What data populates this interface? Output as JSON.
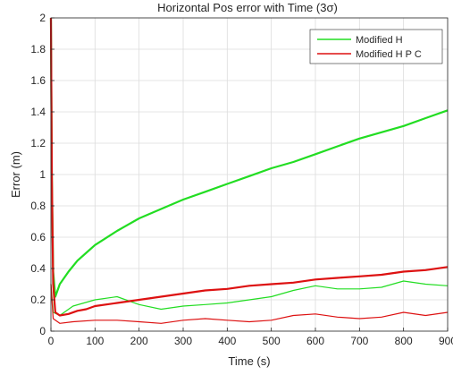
{
  "chart_data": {
    "type": "line",
    "title": "Horizontal Pos error with Time (3σ)",
    "xlabel": "Time (s)",
    "ylabel": "Error (m)",
    "xlim": [
      0,
      900
    ],
    "ylim": [
      0,
      2
    ],
    "grid": true,
    "legend_position": "top-right",
    "x_ticks": [
      "0",
      "100",
      "200",
      "300",
      "400",
      "500",
      "600",
      "700",
      "800",
      "900"
    ],
    "y_ticks": [
      "0",
      "0.2",
      "0.4",
      "0.6",
      "0.8",
      "1",
      "1.2",
      "1.4",
      "1.6",
      "1.8",
      "2"
    ],
    "series": [
      {
        "name": "Modified H",
        "color": "#22dd22",
        "role": "3-sigma bound",
        "x": [
          0,
          2,
          5,
          10,
          20,
          40,
          60,
          80,
          100,
          150,
          200,
          250,
          300,
          350,
          400,
          450,
          500,
          550,
          600,
          650,
          700,
          750,
          800,
          850,
          900
        ],
        "y": [
          2.0,
          1.0,
          0.38,
          0.22,
          0.3,
          0.38,
          0.45,
          0.5,
          0.55,
          0.64,
          0.72,
          0.78,
          0.84,
          0.89,
          0.94,
          0.99,
          1.04,
          1.08,
          1.13,
          1.18,
          1.23,
          1.27,
          1.31,
          1.36,
          1.41
        ]
      },
      {
        "name": "Modified H",
        "color": "#22dd22",
        "role": "error",
        "x": [
          0,
          5,
          20,
          50,
          100,
          150,
          200,
          250,
          300,
          350,
          400,
          450,
          500,
          550,
          600,
          650,
          700,
          750,
          800,
          850,
          900
        ],
        "y": [
          0.3,
          0.12,
          0.1,
          0.16,
          0.2,
          0.22,
          0.17,
          0.14,
          0.16,
          0.17,
          0.18,
          0.2,
          0.22,
          0.26,
          0.29,
          0.27,
          0.27,
          0.28,
          0.32,
          0.3,
          0.29
        ]
      },
      {
        "name": "Modified H P C",
        "color": "#dd1111",
        "role": "3-sigma bound",
        "x": [
          0,
          2,
          5,
          10,
          20,
          40,
          60,
          80,
          100,
          150,
          200,
          250,
          300,
          350,
          400,
          450,
          500,
          550,
          600,
          650,
          700,
          750,
          800,
          850,
          900
        ],
        "y": [
          2.0,
          1.0,
          0.3,
          0.12,
          0.1,
          0.11,
          0.13,
          0.14,
          0.16,
          0.18,
          0.2,
          0.22,
          0.24,
          0.26,
          0.27,
          0.29,
          0.3,
          0.31,
          0.33,
          0.34,
          0.35,
          0.36,
          0.38,
          0.39,
          0.41
        ]
      },
      {
        "name": "Modified H P C",
        "color": "#dd1111",
        "role": "error",
        "x": [
          0,
          5,
          20,
          50,
          100,
          150,
          200,
          250,
          300,
          350,
          400,
          450,
          500,
          550,
          600,
          650,
          700,
          750,
          800,
          850,
          900
        ],
        "y": [
          0.3,
          0.08,
          0.05,
          0.06,
          0.07,
          0.07,
          0.06,
          0.05,
          0.07,
          0.08,
          0.07,
          0.06,
          0.07,
          0.1,
          0.11,
          0.09,
          0.08,
          0.09,
          0.12,
          0.1,
          0.12
        ]
      }
    ]
  }
}
